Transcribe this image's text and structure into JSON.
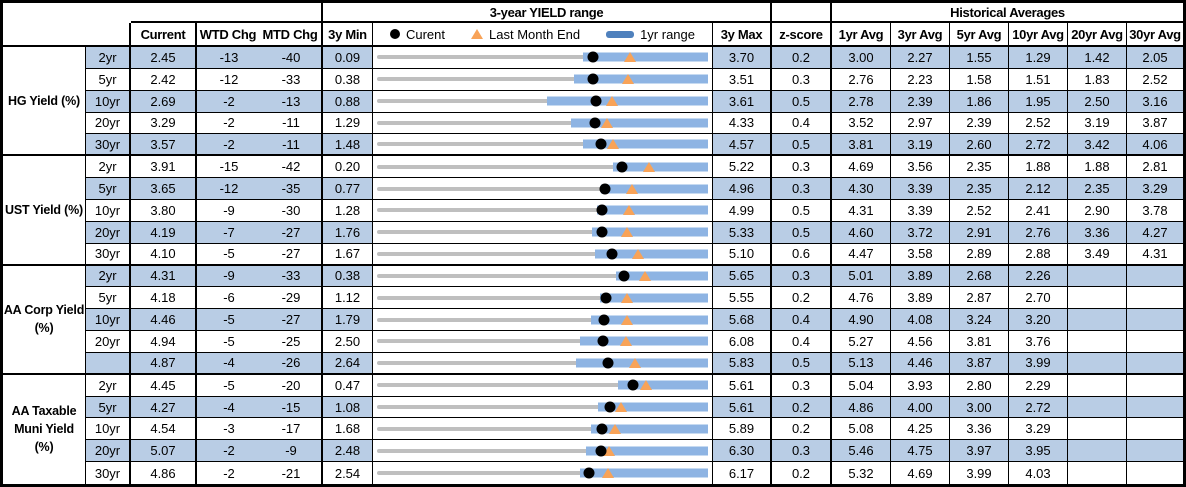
{
  "header": {
    "yield_range_title": "3-year YIELD range",
    "historical_title": "Historical Averages",
    "col_current": "Current",
    "col_wtd": "WTD Chg",
    "col_mtd": "MTD Chg",
    "col_3y_min": "3y Min",
    "col_3y_max": "3y Max",
    "col_zscore": "z-score",
    "avg_cols": [
      "1yr Avg",
      "3yr Avg",
      "5yr Avg",
      "10yr Avg",
      "20yr Avg",
      "30yr Avg"
    ],
    "legend": {
      "current_label": "Curent",
      "last_month_end_label": "Last Month End",
      "yr1_range_label": "1yr range"
    }
  },
  "colors": {
    "band": "#b9cde5",
    "range_bar": "#8eb4e3",
    "track": "#bfbfbf",
    "marker_dot": "#000000",
    "marker_triangle": "#f8a358",
    "legend_bar": "#4f81bd",
    "border": "#000000"
  },
  "chart_data": {
    "type": "range-dot-table",
    "x_unit": "yield %",
    "note": "Each row: gray track spans y3_min..y3_max; blue bar is 1yr range (yr1_low..yr1_high, estimated from pixels); black dot = current; orange triangle = last month end (current - mtd_chg/100).",
    "sections": [
      {
        "label": "HG Yield (%)",
        "label_lines": [
          "HG Yield (%)"
        ],
        "rows": [
          {
            "tenor": "2yr",
            "current": 2.45,
            "wtd_chg": -13,
            "mtd_chg": -40,
            "y3_min": 0.09,
            "y3_max": 3.7,
            "z_score": 0.2,
            "last_month_end": 2.85,
            "yr1_low": 2.34,
            "yr1_high": 3.7,
            "avgs": [
              3.0,
              2.27,
              1.55,
              1.29,
              1.42,
              2.05
            ]
          },
          {
            "tenor": "5yr",
            "current": 2.42,
            "wtd_chg": -12,
            "mtd_chg": -33,
            "y3_min": 0.38,
            "y3_max": 3.51,
            "z_score": 0.3,
            "last_month_end": 2.75,
            "yr1_low": 2.24,
            "yr1_high": 3.51,
            "avgs": [
              2.76,
              2.23,
              1.58,
              1.51,
              1.83,
              2.52
            ]
          },
          {
            "tenor": "10yr",
            "current": 2.69,
            "wtd_chg": -2,
            "mtd_chg": -13,
            "y3_min": 0.88,
            "y3_max": 3.61,
            "z_score": 0.5,
            "last_month_end": 2.82,
            "yr1_low": 2.28,
            "yr1_high": 3.61,
            "avgs": [
              2.78,
              2.39,
              1.86,
              1.95,
              2.5,
              3.16
            ]
          },
          {
            "tenor": "20yr",
            "current": 3.29,
            "wtd_chg": -2,
            "mtd_chg": -11,
            "y3_min": 1.29,
            "y3_max": 4.33,
            "z_score": 0.4,
            "last_month_end": 3.4,
            "yr1_low": 3.07,
            "yr1_high": 4.33,
            "avgs": [
              3.52,
              2.97,
              2.39,
              2.52,
              3.19,
              3.87
            ]
          },
          {
            "tenor": "30yr",
            "current": 3.57,
            "wtd_chg": -2,
            "mtd_chg": -11,
            "y3_min": 1.48,
            "y3_max": 4.57,
            "z_score": 0.5,
            "last_month_end": 3.68,
            "yr1_low": 3.4,
            "yr1_high": 4.57,
            "avgs": [
              3.81,
              3.19,
              2.6,
              2.72,
              3.42,
              4.06
            ]
          }
        ]
      },
      {
        "label": "UST Yield (%)",
        "label_lines": [
          "UST Yield (%)"
        ],
        "rows": [
          {
            "tenor": "2yr",
            "current": 3.91,
            "wtd_chg": -15,
            "mtd_chg": -42,
            "y3_min": 0.2,
            "y3_max": 5.22,
            "z_score": 0.3,
            "last_month_end": 4.33,
            "yr1_low": 3.78,
            "yr1_high": 5.22,
            "avgs": [
              4.69,
              3.56,
              2.35,
              1.88,
              1.88,
              2.81
            ]
          },
          {
            "tenor": "5yr",
            "current": 3.65,
            "wtd_chg": -12,
            "mtd_chg": -35,
            "y3_min": 0.77,
            "y3_max": 4.96,
            "z_score": 0.3,
            "last_month_end": 4.0,
            "yr1_low": 3.6,
            "yr1_high": 4.96,
            "avgs": [
              4.3,
              3.39,
              2.35,
              2.12,
              2.35,
              3.29
            ]
          },
          {
            "tenor": "10yr",
            "current": 3.8,
            "wtd_chg": -9,
            "mtd_chg": -30,
            "y3_min": 1.28,
            "y3_max": 4.99,
            "z_score": 0.5,
            "last_month_end": 4.1,
            "yr1_low": 3.75,
            "yr1_high": 4.99,
            "avgs": [
              4.31,
              3.39,
              2.52,
              2.41,
              2.9,
              3.78
            ]
          },
          {
            "tenor": "20yr",
            "current": 4.19,
            "wtd_chg": -7,
            "mtd_chg": -27,
            "y3_min": 1.76,
            "y3_max": 5.33,
            "z_score": 0.5,
            "last_month_end": 4.46,
            "yr1_low": 4.08,
            "yr1_high": 5.33,
            "avgs": [
              4.6,
              3.72,
              2.91,
              2.76,
              3.36,
              4.27
            ]
          },
          {
            "tenor": "30yr",
            "current": 4.1,
            "wtd_chg": -5,
            "mtd_chg": -27,
            "y3_min": 1.67,
            "y3_max": 5.1,
            "z_score": 0.6,
            "last_month_end": 4.37,
            "yr1_low": 3.93,
            "yr1_high": 5.1,
            "avgs": [
              4.47,
              3.58,
              2.89,
              2.88,
              3.49,
              4.31
            ]
          }
        ]
      },
      {
        "label": "AA Corp Yield (%)",
        "label_lines": [
          "AA Corp Yield",
          "(%)"
        ],
        "rows": [
          {
            "tenor": "2yr",
            "current": 4.31,
            "wtd_chg": -9,
            "mtd_chg": -33,
            "y3_min": 0.38,
            "y3_max": 5.65,
            "z_score": 0.3,
            "last_month_end": 4.64,
            "yr1_low": 4.18,
            "yr1_high": 5.65,
            "avgs": [
              5.01,
              3.89,
              2.68,
              2.26,
              null,
              null
            ]
          },
          {
            "tenor": "5yr",
            "current": 4.18,
            "wtd_chg": -6,
            "mtd_chg": -29,
            "y3_min": 1.12,
            "y3_max": 5.55,
            "z_score": 0.2,
            "last_month_end": 4.47,
            "yr1_low": 4.1,
            "yr1_high": 5.55,
            "avgs": [
              4.76,
              3.89,
              2.87,
              2.7,
              null,
              null
            ]
          },
          {
            "tenor": "10yr",
            "current": 4.46,
            "wtd_chg": -5,
            "mtd_chg": -27,
            "y3_min": 1.79,
            "y3_max": 5.68,
            "z_score": 0.4,
            "last_month_end": 4.73,
            "yr1_low": 4.3,
            "yr1_high": 5.68,
            "avgs": [
              4.9,
              4.08,
              3.24,
              3.2,
              null,
              null
            ]
          },
          {
            "tenor": "20yr",
            "current": 4.94,
            "wtd_chg": -5,
            "mtd_chg": -25,
            "y3_min": 2.5,
            "y3_max": 6.08,
            "z_score": 0.4,
            "last_month_end": 5.19,
            "yr1_low": 4.7,
            "yr1_high": 6.08,
            "avgs": [
              5.27,
              4.56,
              3.81,
              3.76,
              null,
              null
            ]
          },
          {
            "tenor": "",
            "current": 4.87,
            "wtd_chg": -4,
            "mtd_chg": -26,
            "y3_min": 2.64,
            "y3_max": 5.83,
            "z_score": 0.5,
            "last_month_end": 5.13,
            "yr1_low": 4.56,
            "yr1_high": 5.83,
            "avgs": [
              5.13,
              4.46,
              3.87,
              3.99,
              null,
              null
            ]
          }
        ]
      },
      {
        "label": "AA Taxable Muni Yield (%)",
        "label_lines": [
          "AA Taxable",
          "Muni Yield",
          "(%)"
        ],
        "rows": [
          {
            "tenor": "2yr",
            "current": 4.45,
            "wtd_chg": -5,
            "mtd_chg": -20,
            "y3_min": 0.47,
            "y3_max": 5.61,
            "z_score": 0.3,
            "last_month_end": 4.65,
            "yr1_low": 4.21,
            "yr1_high": 5.61,
            "avgs": [
              5.04,
              3.93,
              2.8,
              2.29,
              null,
              null
            ]
          },
          {
            "tenor": "5yr",
            "current": 4.27,
            "wtd_chg": -4,
            "mtd_chg": -15,
            "y3_min": 1.08,
            "y3_max": 5.61,
            "z_score": 0.2,
            "last_month_end": 4.42,
            "yr1_low": 4.1,
            "yr1_high": 5.61,
            "avgs": [
              4.86,
              4.0,
              3.0,
              2.72,
              null,
              null
            ]
          },
          {
            "tenor": "10yr",
            "current": 4.54,
            "wtd_chg": -3,
            "mtd_chg": -17,
            "y3_min": 1.68,
            "y3_max": 5.89,
            "z_score": 0.2,
            "last_month_end": 4.71,
            "yr1_low": 4.4,
            "yr1_high": 5.89,
            "avgs": [
              5.08,
              4.25,
              3.36,
              3.29,
              null,
              null
            ]
          },
          {
            "tenor": "20yr",
            "current": 5.07,
            "wtd_chg": -2,
            "mtd_chg": -9,
            "y3_min": 2.48,
            "y3_max": 6.3,
            "z_score": 0.3,
            "last_month_end": 5.16,
            "yr1_low": 4.89,
            "yr1_high": 6.3,
            "avgs": [
              5.46,
              4.75,
              3.97,
              3.95,
              null,
              null
            ]
          },
          {
            "tenor": "30yr",
            "current": 4.86,
            "wtd_chg": -2,
            "mtd_chg": -21,
            "y3_min": 2.54,
            "y3_max": 6.17,
            "z_score": 0.2,
            "last_month_end": 5.07,
            "yr1_low": 4.77,
            "yr1_high": 6.17,
            "avgs": [
              5.32,
              4.69,
              3.99,
              4.03,
              null,
              null
            ]
          }
        ]
      }
    ]
  }
}
